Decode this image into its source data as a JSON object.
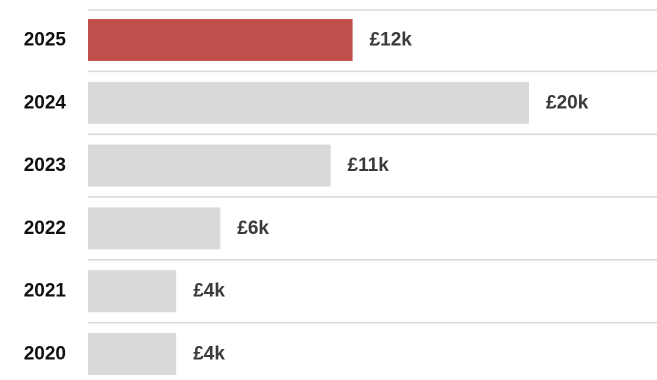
{
  "chart_data": {
    "type": "bar",
    "orientation": "horizontal",
    "title": "",
    "xlabel": "",
    "ylabel": "",
    "categories": [
      "2025",
      "2024",
      "2023",
      "2022",
      "2021",
      "2020"
    ],
    "values": [
      12,
      20,
      11,
      6,
      4,
      4
    ],
    "value_labels": [
      "£12k",
      "£20k",
      "£11k",
      "£6k",
      "£4k",
      "£4k"
    ],
    "unit": "£k",
    "xlim": [
      0,
      20
    ],
    "highlight_index": 0,
    "colors": {
      "highlight": "#c0504d",
      "default": "#d9d9d9",
      "divider": "#d9d9d9",
      "label": "#111111",
      "value_label": "#3a3a3a"
    },
    "grid": false,
    "legend": "none"
  }
}
